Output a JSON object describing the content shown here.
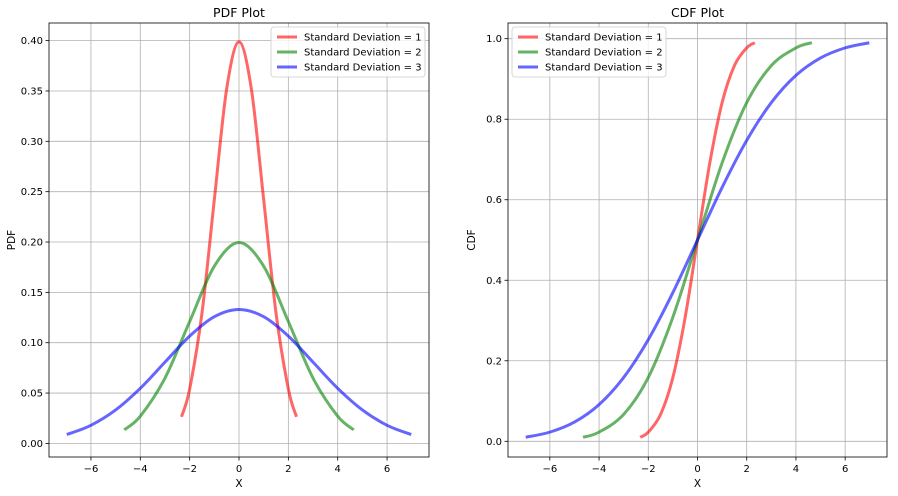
{
  "chart_data": [
    {
      "type": "line",
      "title": "PDF Plot",
      "xlabel": "X",
      "ylabel": "PDF",
      "xlim": [
        -7.7,
        7.7
      ],
      "ylim": [
        -0.0135,
        0.4175
      ],
      "xticks": [
        -6,
        -4,
        -2,
        0,
        2,
        4,
        6
      ],
      "xtick_labels": [
        "−6",
        "−4",
        "−2",
        "0",
        "2",
        "4",
        "6"
      ],
      "yticks": [
        0.0,
        0.05,
        0.1,
        0.15,
        0.2,
        0.25,
        0.3,
        0.35,
        0.4
      ],
      "ytick_labels": [
        "0.00",
        "0.05",
        "0.10",
        "0.15",
        "0.20",
        "0.25",
        "0.30",
        "0.35",
        "0.40"
      ],
      "grid": true,
      "legend_position": "top-right",
      "series": [
        {
          "name": "Standard Deviation = 1",
          "color": "#ff0000",
          "x": [
            -2.33,
            -2.0,
            -1.5,
            -1.0,
            -0.5,
            0.0,
            0.5,
            1.0,
            1.5,
            2.0,
            2.33
          ],
          "y": [
            0.0264,
            0.054,
            0.1295,
            0.242,
            0.3521,
            0.3989,
            0.3521,
            0.242,
            0.1295,
            0.054,
            0.0264
          ]
        },
        {
          "name": "Standard Deviation = 2",
          "color": "#008000",
          "x": [
            -4.65,
            -4.0,
            -3.0,
            -2.0,
            -1.0,
            0.0,
            1.0,
            2.0,
            3.0,
            4.0,
            4.65
          ],
          "y": [
            0.0134,
            0.027,
            0.0648,
            0.121,
            0.176,
            0.1995,
            0.176,
            0.121,
            0.0648,
            0.027,
            0.0134
          ]
        },
        {
          "name": "Standard Deviation = 3",
          "color": "#0000ff",
          "x": [
            -6.98,
            -6.0,
            -5.0,
            -4.0,
            -3.0,
            -2.0,
            -1.0,
            0.0,
            1.0,
            2.0,
            3.0,
            4.0,
            5.0,
            6.0,
            6.98
          ],
          "y": [
            0.0088,
            0.018,
            0.0332,
            0.0547,
            0.0807,
            0.1065,
            0.1258,
            0.133,
            0.1258,
            0.1065,
            0.0807,
            0.0547,
            0.0332,
            0.018,
            0.0088
          ]
        }
      ]
    },
    {
      "type": "line",
      "title": "CDF Plot",
      "xlabel": "X",
      "ylabel": "CDF",
      "xlim": [
        -7.7,
        7.7
      ],
      "ylim": [
        -0.039,
        1.039
      ],
      "xticks": [
        -6,
        -4,
        -2,
        0,
        2,
        4,
        6
      ],
      "xtick_labels": [
        "−6",
        "−4",
        "−2",
        "0",
        "2",
        "4",
        "6"
      ],
      "yticks": [
        0.0,
        0.2,
        0.4,
        0.6,
        0.8,
        1.0
      ],
      "ytick_labels": [
        "0.0",
        "0.2",
        "0.4",
        "0.6",
        "0.8",
        "1.0"
      ],
      "grid": true,
      "legend_position": "top-left",
      "series": [
        {
          "name": "Standard Deviation = 1",
          "color": "#ff0000",
          "x": [
            -2.33,
            -2.0,
            -1.5,
            -1.0,
            -0.5,
            0.0,
            0.5,
            1.0,
            1.5,
            2.0,
            2.33
          ],
          "y": [
            0.01,
            0.0228,
            0.0668,
            0.1587,
            0.3085,
            0.5,
            0.6915,
            0.8413,
            0.9332,
            0.9772,
            0.99
          ]
        },
        {
          "name": "Standard Deviation = 2",
          "color": "#008000",
          "x": [
            -4.65,
            -4.0,
            -3.0,
            -2.0,
            -1.0,
            0.0,
            1.0,
            2.0,
            3.0,
            4.0,
            4.65
          ],
          "y": [
            0.01,
            0.0228,
            0.0668,
            0.1587,
            0.3085,
            0.5,
            0.6915,
            0.8413,
            0.9332,
            0.9772,
            0.99
          ]
        },
        {
          "name": "Standard Deviation = 3",
          "color": "#0000ff",
          "x": [
            -6.98,
            -6.0,
            -5.0,
            -4.0,
            -3.0,
            -2.0,
            -1.0,
            0.0,
            1.0,
            2.0,
            3.0,
            4.0,
            5.0,
            6.0,
            6.98
          ],
          "y": [
            0.01,
            0.0228,
            0.0478,
            0.0912,
            0.1587,
            0.2525,
            0.3694,
            0.5,
            0.6306,
            0.7475,
            0.8413,
            0.9088,
            0.9522,
            0.9772,
            0.99
          ]
        }
      ]
    }
  ]
}
